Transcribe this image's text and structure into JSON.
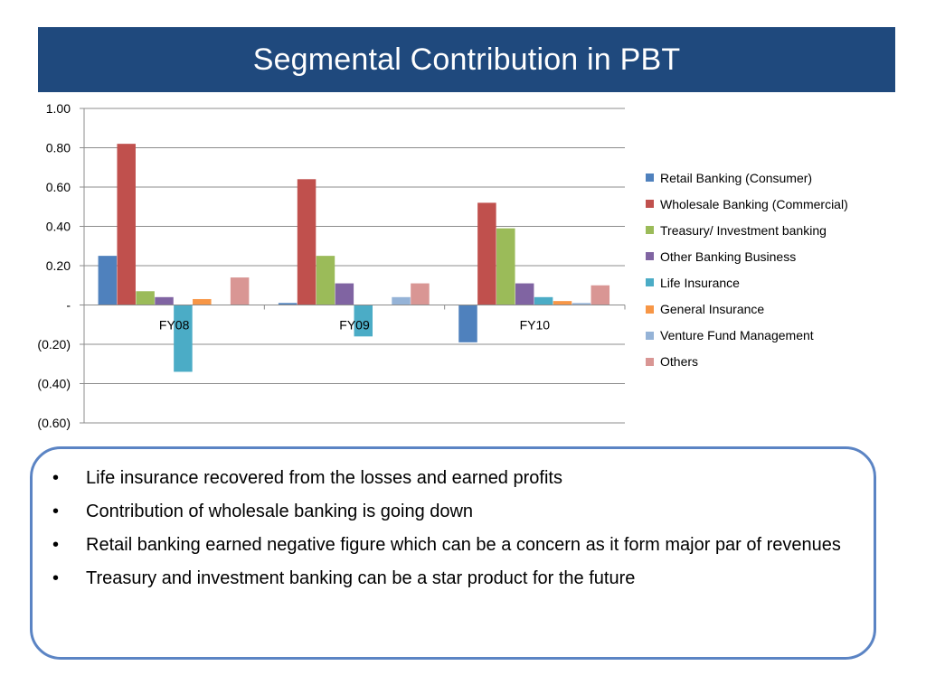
{
  "slide": {
    "title": "Segmental Contribution in PBT",
    "bullet_symbol": "•",
    "bullets": [
      "Life insurance recovered from the losses and earned profits",
      "Contribution of wholesale banking is going down",
      "Retail banking earned negative figure which can be a concern as it form major par of revenues",
      "Treasury and investment banking can be a star product for the future"
    ]
  },
  "chart_data": {
    "type": "bar",
    "title": "",
    "xlabel": "",
    "ylabel": "",
    "categories": [
      "FY08",
      "FY09",
      "FY10"
    ],
    "ylim": [
      -0.6,
      1.0
    ],
    "yticks": [
      1.0,
      0.8,
      0.6,
      0.4,
      0.2,
      0,
      -0.2,
      -0.4,
      -0.6
    ],
    "ytick_labels": [
      "1.00",
      "0.80",
      "0.60",
      "0.40",
      "0.20",
      "-",
      "(0.20)",
      "(0.40)",
      "(0.60)"
    ],
    "grid": true,
    "legend_position": "right",
    "series": [
      {
        "name": "Retail Banking (Consumer)",
        "color": "#4f81bd",
        "values": [
          0.25,
          0.01,
          -0.19
        ]
      },
      {
        "name": "Wholesale Banking (Commercial)",
        "color": "#c0504d",
        "values": [
          0.82,
          0.64,
          0.52
        ]
      },
      {
        "name": "Treasury/ Investment banking",
        "color": "#9bbb59",
        "values": [
          0.07,
          0.25,
          0.39
        ]
      },
      {
        "name": "Other Banking Business",
        "color": "#8064a2",
        "values": [
          0.04,
          0.11,
          0.11
        ]
      },
      {
        "name": "Life Insurance",
        "color": "#4bacc6",
        "values": [
          -0.34,
          -0.16,
          0.04
        ]
      },
      {
        "name": "General Insurance",
        "color": "#f79646",
        "values": [
          0.03,
          0.0,
          0.02
        ]
      },
      {
        "name": "Venture Fund Management",
        "color": "#95b3d7",
        "values": [
          0.0,
          0.04,
          0.01
        ]
      },
      {
        "name": "Others",
        "color": "#d99694",
        "values": [
          0.14,
          0.11,
          0.1
        ]
      }
    ]
  }
}
